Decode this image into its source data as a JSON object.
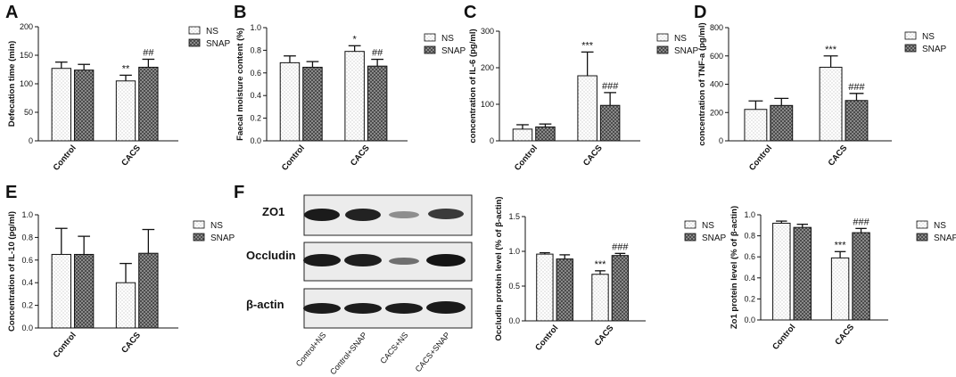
{
  "panels": [
    {
      "label": "A"
    },
    {
      "label": "B"
    },
    {
      "label": "C"
    },
    {
      "label": "D"
    },
    {
      "label": "E"
    },
    {
      "label": "F"
    }
  ],
  "legend": {
    "ns": "NS",
    "snap": "SNAP"
  },
  "colors": {
    "ns_fill": "dotted-white",
    "snap_fill": "cross-hatched-gray",
    "outline": "#111111"
  },
  "blot": {
    "rows": [
      "ZO1",
      "Occludin",
      "β-actin"
    ],
    "lanes": [
      "Control+NS",
      "Control+SNAP",
      "CACS+NS",
      "CACS+SNAP"
    ]
  },
  "chart_data": [
    {
      "id": "A",
      "type": "bar",
      "categories": [
        "Control",
        "CACS"
      ],
      "ylabel": "Defecation time (min)",
      "ylim": [
        0,
        200
      ],
      "yticks": [
        "0",
        "50",
        "100",
        "150",
        "200"
      ],
      "series": [
        {
          "name": "NS",
          "values": [
            127,
            105
          ],
          "errors": [
            11,
            10
          ],
          "sig": [
            "",
            "**"
          ]
        },
        {
          "name": "SNAP",
          "values": [
            124,
            129
          ],
          "errors": [
            10,
            14
          ],
          "sig": [
            "",
            "##"
          ]
        }
      ]
    },
    {
      "id": "B",
      "type": "bar",
      "categories": [
        "Control",
        "CACS"
      ],
      "ylabel": "Faecal moisture content (%)",
      "ylim": [
        0,
        1.0
      ],
      "yticks": [
        "0.0",
        "0.2",
        "0.4",
        "0.6",
        "0.8",
        "1.0"
      ],
      "series": [
        {
          "name": "NS",
          "values": [
            0.69,
            0.79
          ],
          "errors": [
            0.06,
            0.05
          ],
          "sig": [
            "",
            "*"
          ]
        },
        {
          "name": "SNAP",
          "values": [
            0.65,
            0.66
          ],
          "errors": [
            0.05,
            0.06
          ],
          "sig": [
            "",
            "##"
          ]
        }
      ]
    },
    {
      "id": "C",
      "type": "bar",
      "categories": [
        "Control",
        "CACS"
      ],
      "ylabel": "concentration of IL-6 (pg/ml)",
      "ylim": [
        0,
        300
      ],
      "yticks": [
        "0",
        "100",
        "200",
        "300"
      ],
      "series": [
        {
          "name": "NS",
          "values": [
            32,
            178
          ],
          "errors": [
            12,
            65
          ],
          "sig": [
            "",
            "***"
          ]
        },
        {
          "name": "SNAP",
          "values": [
            38,
            97
          ],
          "errors": [
            8,
            35
          ],
          "sig": [
            "",
            "###"
          ]
        }
      ]
    },
    {
      "id": "D",
      "type": "bar",
      "categories": [
        "Control",
        "CACS"
      ],
      "ylabel": "concentration of TNF-a (pg/ml)",
      "ylim": [
        0,
        800
      ],
      "yticks": [
        "0",
        "200",
        "400",
        "600",
        "800"
      ],
      "series": [
        {
          "name": "NS",
          "values": [
            222,
            520
          ],
          "errors": [
            60,
            80
          ],
          "sig": [
            "",
            "***"
          ]
        },
        {
          "name": "SNAP",
          "values": [
            250,
            285
          ],
          "errors": [
            50,
            50
          ],
          "sig": [
            "",
            "###"
          ]
        }
      ]
    },
    {
      "id": "E",
      "type": "bar",
      "categories": [
        "Control",
        "CACS"
      ],
      "ylabel": "Concentration of IL-10 (pg/ml)",
      "ylim": [
        0,
        1.0
      ],
      "yticks": [
        "0.0",
        "0.2",
        "0.4",
        "0.6",
        "0.8",
        "1.0"
      ],
      "series": [
        {
          "name": "NS",
          "values": [
            0.65,
            0.4
          ],
          "errors": [
            0.23,
            0.17
          ],
          "sig": [
            "",
            ""
          ]
        },
        {
          "name": "SNAP",
          "values": [
            0.65,
            0.66
          ],
          "errors": [
            0.16,
            0.21
          ],
          "sig": [
            "",
            ""
          ]
        }
      ]
    },
    {
      "id": "F-occludin",
      "type": "bar",
      "categories": [
        "Control",
        "CACS"
      ],
      "ylabel": "Occludin protein level (% of β-actin)",
      "ylim": [
        0,
        1.5
      ],
      "yticks": [
        "0.0",
        "0.5",
        "1.0",
        "1.5"
      ],
      "series": [
        {
          "name": "NS",
          "values": [
            0.96,
            0.67
          ],
          "errors": [
            0.02,
            0.05
          ],
          "sig": [
            "",
            "***"
          ]
        },
        {
          "name": "SNAP",
          "values": [
            0.89,
            0.94
          ],
          "errors": [
            0.06,
            0.03
          ],
          "sig": [
            "",
            "###"
          ]
        }
      ]
    },
    {
      "id": "F-zo1",
      "type": "bar",
      "categories": [
        "Control",
        "CACS"
      ],
      "ylabel": "Zo1 protein level (% of β-actin)",
      "ylim": [
        0,
        1.0
      ],
      "yticks": [
        "0.0",
        "0.2",
        "0.4",
        "0.6",
        "0.8",
        "1.0"
      ],
      "series": [
        {
          "name": "NS",
          "values": [
            0.92,
            0.59
          ],
          "errors": [
            0.02,
            0.06
          ],
          "sig": [
            "",
            "***"
          ]
        },
        {
          "name": "SNAP",
          "values": [
            0.88,
            0.83
          ],
          "errors": [
            0.03,
            0.04
          ],
          "sig": [
            "",
            "###"
          ]
        }
      ]
    }
  ]
}
